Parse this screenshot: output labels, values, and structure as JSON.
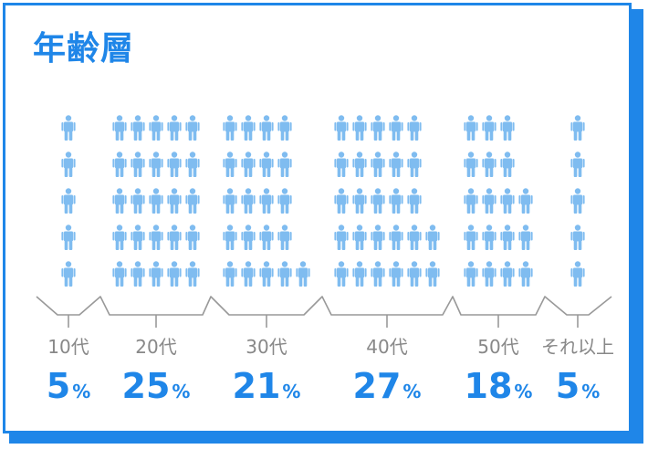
{
  "title": "年齢層",
  "chart_data": {
    "type": "bar",
    "style": "pictograph",
    "categories": [
      "10代",
      "20代",
      "30代",
      "40代",
      "50代",
      "それ以上"
    ],
    "values": [
      5,
      25,
      21,
      27,
      18,
      5
    ],
    "unit": "%",
    "icon": "person-icon"
  },
  "colors": {
    "accent": "#1f86e8",
    "icon": "#7fbcf0",
    "axis": "#999999",
    "label": "#888888"
  }
}
